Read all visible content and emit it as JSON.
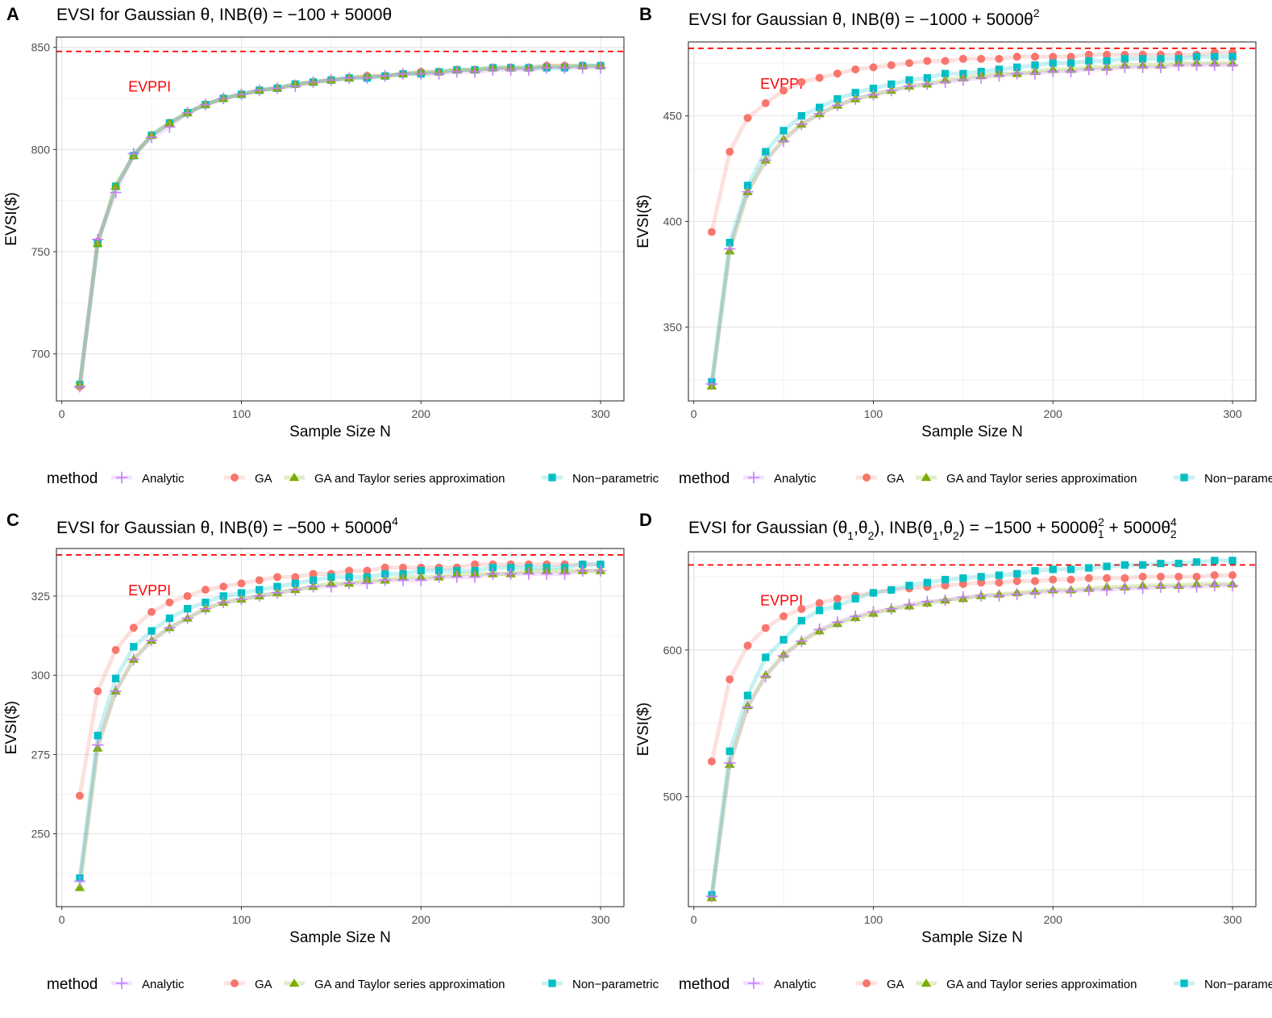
{
  "legend": {
    "title": "method",
    "methods": [
      {
        "key": "analytic",
        "label": "Analytic",
        "color": "#C77CFF",
        "marker": "plus"
      },
      {
        "key": "ga",
        "label": "GA",
        "color": "#F8766D",
        "marker": "circle"
      },
      {
        "key": "gats",
        "label": "GA and Taylor series approximation",
        "color": "#7CAE00",
        "marker": "triangle"
      },
      {
        "key": "np",
        "label": "Non−parametric",
        "color": "#00BFC4",
        "marker": "square"
      }
    ]
  },
  "evppi_color": "#FF0000",
  "chart_data": [
    {
      "panel": "A",
      "type": "line",
      "title": "EVSI for Gaussian θ, INB(θ) = −100 + 5000θ",
      "xlabel": "Sample Size N",
      "ylabel": "EVSI($)",
      "xlim": [
        -3,
        313
      ],
      "ylim": [
        677,
        855
      ],
      "xticks": [
        0,
        100,
        200,
        300
      ],
      "yticks": [
        700,
        750,
        800,
        850
      ],
      "evppi": {
        "label": "EVPPI",
        "value": 848
      },
      "x": [
        10,
        20,
        30,
        40,
        50,
        60,
        70,
        80,
        90,
        100,
        110,
        120,
        130,
        140,
        150,
        160,
        170,
        180,
        190,
        200,
        210,
        220,
        230,
        240,
        250,
        260,
        270,
        280,
        290,
        300
      ],
      "series": [
        {
          "method": "analytic",
          "values": [
            684,
            756,
            779,
            798,
            806,
            811,
            818,
            822,
            825,
            827,
            829,
            830,
            831,
            833,
            834,
            835,
            835,
            836,
            837,
            837,
            837,
            838,
            838,
            839,
            839,
            839,
            840,
            840,
            840,
            840
          ]
        },
        {
          "method": "ga",
          "values": [
            684,
            755,
            782,
            797,
            807,
            813,
            818,
            822,
            825,
            827,
            829,
            830,
            832,
            833,
            834,
            835,
            836,
            836,
            837,
            838,
            838,
            839,
            839,
            840,
            840,
            840,
            841,
            841,
            841,
            841
          ]
        },
        {
          "method": "gats",
          "values": [
            685,
            754,
            782,
            797,
            807,
            813,
            818,
            822,
            825,
            827,
            829,
            830,
            832,
            833,
            834,
            835,
            836,
            836,
            837,
            838,
            838,
            839,
            839,
            840,
            840,
            840,
            841,
            841,
            841,
            841
          ]
        },
        {
          "method": "np",
          "values": [
            685,
            754,
            782,
            797,
            807,
            813,
            818,
            822,
            825,
            827,
            829,
            830,
            832,
            833,
            834,
            835,
            835,
            836,
            837,
            837,
            838,
            839,
            839,
            840,
            840,
            840,
            840,
            840,
            841,
            841
          ]
        }
      ]
    },
    {
      "panel": "B",
      "type": "line",
      "title": "EVSI for Gaussian θ, INB(θ) = −1000 + 5000θ",
      "title_sup": "2",
      "xlabel": "Sample Size N",
      "ylabel": "EVSI($)",
      "xlim": [
        -3,
        313
      ],
      "ylim": [
        315,
        485
      ],
      "xticks": [
        0,
        100,
        200,
        300
      ],
      "yticks": [
        350,
        400,
        450
      ],
      "evppi": {
        "label": "EVPPI",
        "value": 482
      },
      "x": [
        10,
        20,
        30,
        40,
        50,
        60,
        70,
        80,
        90,
        100,
        110,
        120,
        130,
        140,
        150,
        160,
        170,
        180,
        190,
        200,
        210,
        220,
        230,
        240,
        250,
        260,
        270,
        280,
        290,
        300
      ],
      "series": [
        {
          "method": "analytic",
          "values": [
            323,
            387,
            414,
            429,
            438,
            446,
            451,
            455,
            458,
            460,
            462,
            464,
            465,
            466,
            467,
            468,
            469,
            470,
            470,
            471,
            471,
            472,
            472,
            473,
            473,
            473,
            474,
            474,
            474,
            474
          ]
        },
        {
          "method": "ga",
          "values": [
            395,
            433,
            449,
            456,
            462,
            466,
            468,
            470,
            472,
            473,
            474,
            475,
            476,
            476,
            477,
            477,
            477,
            478,
            478,
            478,
            478,
            479,
            479,
            479,
            479,
            479,
            479,
            479,
            480,
            480
          ]
        },
        {
          "method": "gats",
          "values": [
            322,
            386,
            414,
            429,
            439,
            446,
            451,
            455,
            458,
            460,
            462,
            464,
            465,
            467,
            468,
            469,
            470,
            470,
            471,
            472,
            472,
            473,
            473,
            474,
            474,
            474,
            475,
            475,
            475,
            475
          ]
        },
        {
          "method": "np",
          "values": [
            324,
            390,
            417,
            433,
            443,
            450,
            454,
            458,
            461,
            463,
            465,
            467,
            468,
            470,
            470,
            471,
            472,
            473,
            474,
            475,
            475,
            476,
            476,
            477,
            477,
            477,
            477,
            478,
            478,
            478
          ]
        }
      ]
    },
    {
      "panel": "C",
      "type": "line",
      "title": "EVSI for Gaussian θ, INB(θ) = −500 + 5000θ",
      "title_sup": "4",
      "xlabel": "Sample Size N",
      "ylabel": "EVSI($)",
      "xlim": [
        -3,
        313
      ],
      "ylim": [
        227,
        340
      ],
      "xticks": [
        0,
        100,
        200,
        300
      ],
      "yticks": [
        250,
        275,
        300,
        325
      ],
      "evppi": {
        "label": "EVPPI",
        "value": 338
      },
      "x": [
        10,
        20,
        30,
        40,
        50,
        60,
        70,
        80,
        90,
        100,
        110,
        120,
        130,
        140,
        150,
        160,
        170,
        180,
        190,
        200,
        210,
        220,
        230,
        240,
        250,
        260,
        270,
        280,
        290,
        300
      ],
      "series": [
        {
          "method": "analytic",
          "values": [
            235,
            278,
            295,
            305,
            311,
            315,
            318,
            321,
            323,
            324,
            325,
            326,
            327,
            328,
            328,
            329,
            329,
            330,
            330,
            330,
            331,
            331,
            331,
            332,
            332,
            332,
            332,
            332,
            333,
            333
          ]
        },
        {
          "method": "ga",
          "values": [
            262,
            295,
            308,
            315,
            320,
            323,
            325,
            327,
            328,
            329,
            330,
            331,
            331,
            332,
            332,
            333,
            333,
            334,
            334,
            334,
            334,
            334,
            335,
            335,
            335,
            335,
            335,
            335,
            335,
            335
          ]
        },
        {
          "method": "gats",
          "values": [
            233,
            277,
            295,
            305,
            311,
            315,
            318,
            321,
            323,
            324,
            325,
            326,
            327,
            328,
            329,
            329,
            330,
            330,
            331,
            331,
            331,
            332,
            332,
            332,
            332,
            333,
            333,
            333,
            333,
            333
          ]
        },
        {
          "method": "np",
          "values": [
            236,
            281,
            299,
            309,
            314,
            318,
            321,
            323,
            325,
            326,
            327,
            328,
            329,
            330,
            331,
            331,
            331,
            332,
            332,
            333,
            333,
            333,
            333,
            334,
            334,
            334,
            334,
            334,
            335,
            335
          ]
        }
      ]
    },
    {
      "panel": "D",
      "type": "line",
      "title": "EVSI for Gaussian (θ₁,θ₂), INB(θ₁,θ₂) = −1500 + 5000θ₁² + 5000θ₂⁴",
      "xlabel": "Sample Size N",
      "ylabel": "EVSI($)",
      "xlim": [
        -3,
        313
      ],
      "ylim": [
        425,
        667
      ],
      "xticks": [
        0,
        100,
        200,
        300
      ],
      "yticks": [
        500,
        600
      ],
      "evppi": {
        "label": "EVPPI",
        "value": 658
      },
      "x": [
        10,
        20,
        30,
        40,
        50,
        60,
        70,
        80,
        90,
        100,
        110,
        120,
        130,
        140,
        150,
        160,
        170,
        180,
        190,
        200,
        210,
        220,
        230,
        240,
        250,
        260,
        270,
        280,
        290,
        300
      ],
      "series": [
        {
          "method": "analytic",
          "values": [
            432,
            523,
            561,
            582,
            596,
            606,
            614,
            619,
            623,
            626,
            628,
            631,
            633,
            634,
            636,
            637,
            637,
            638,
            639,
            640,
            640,
            641,
            641,
            642,
            642,
            643,
            643,
            643,
            644,
            644
          ]
        },
        {
          "method": "ga",
          "values": [
            524,
            580,
            603,
            615,
            623,
            628,
            632,
            635,
            637,
            639,
            641,
            642,
            643,
            644,
            645,
            646,
            646,
            647,
            647,
            648,
            648,
            649,
            649,
            649,
            650,
            650,
            650,
            650,
            651,
            651
          ]
        },
        {
          "method": "gats",
          "values": [
            431,
            522,
            562,
            583,
            597,
            606,
            613,
            618,
            622,
            625,
            628,
            630,
            632,
            634,
            635,
            637,
            638,
            639,
            640,
            641,
            641,
            642,
            643,
            643,
            644,
            644,
            644,
            645,
            645,
            645
          ]
        },
        {
          "method": "np",
          "values": [
            433,
            531,
            569,
            595,
            607,
            620,
            627,
            630,
            635,
            639,
            641,
            644,
            646,
            648,
            649,
            650,
            651,
            652,
            654,
            655,
            655,
            656,
            657,
            658,
            658,
            659,
            659,
            660,
            661,
            661
          ]
        }
      ]
    }
  ]
}
